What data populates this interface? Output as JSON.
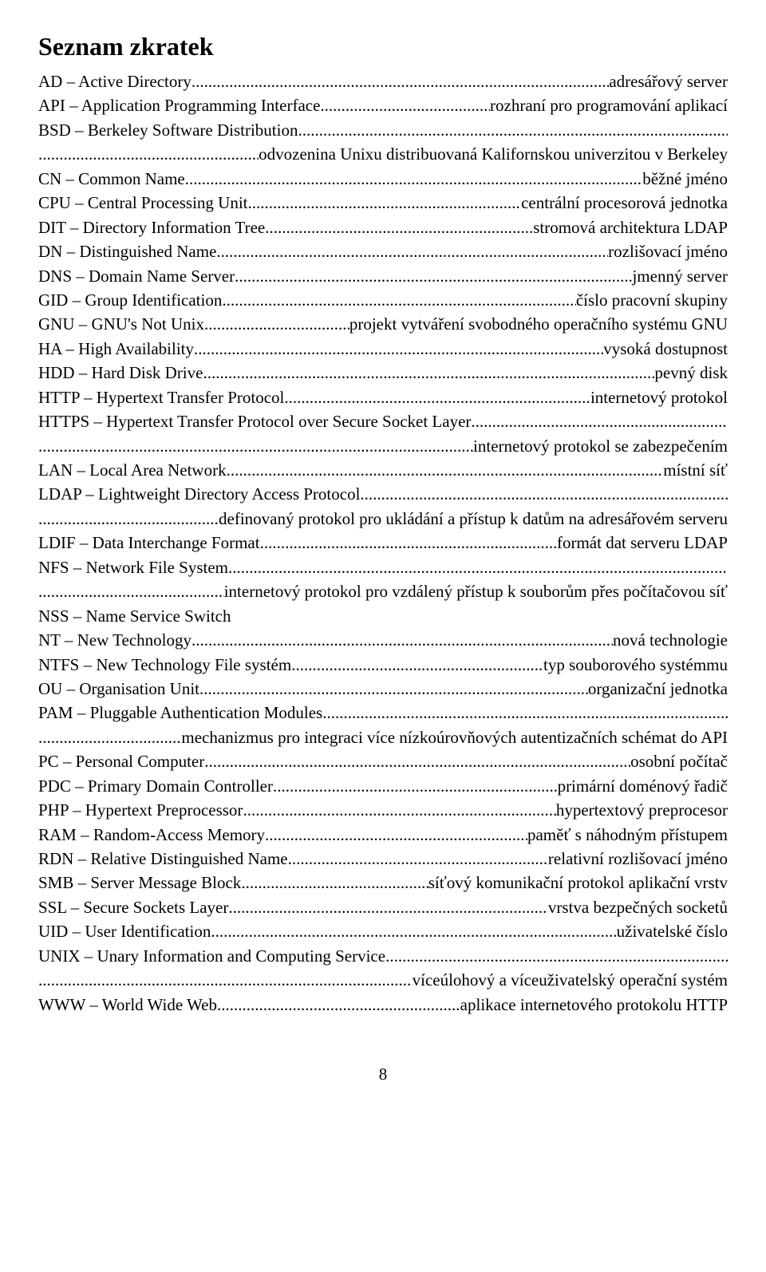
{
  "title": "Seznam zkratek",
  "pageNumber": "8",
  "entries": [
    {
      "term": "AD – Active Directory",
      "defn": "adresářový server"
    },
    {
      "term": "API – Application Programming Interface",
      "defn": "rozhraní pro programování aplikací"
    },
    {
      "term": "BSD – Berkeley Software Distribution",
      "defn": "",
      "contRight": "odvozenina Unixu distribuovaná Kalifornskou univerzitou v Berkeley"
    },
    {
      "term": "CN – Common Name",
      "defn": "běžné jméno"
    },
    {
      "term": "CPU – Central Processing Unit",
      "defn": "centrální procesorová jednotka"
    },
    {
      "term": "DIT – Directory Information Tree",
      "defn": "stromová architektura LDAP"
    },
    {
      "term": "DN – Distinguished Name",
      "defn": "rozlišovací jméno"
    },
    {
      "term": "DNS – Domain Name Server",
      "defn": "jmenný server"
    },
    {
      "term": "GID – Group Identification",
      "defn": "číslo pracovní skupiny"
    },
    {
      "term": "GNU – GNU's Not Unix",
      "defn": "projekt vytváření svobodného operačního systému GNU"
    },
    {
      "term": "HA – High Availability",
      "defn": "vysoká dostupnost"
    },
    {
      "term": "HDD – Hard Disk Drive",
      "defn": "pevný disk"
    },
    {
      "term": "HTTP – Hypertext Transfer Protocol",
      "defn": "internetový protokol"
    },
    {
      "term": "HTTPS – Hypertext Transfer Protocol over Secure Socket Layer",
      "defn": "",
      "contRight": "internetový protokol se zabezpečením"
    },
    {
      "term": "LAN – Local Area Network",
      "defn": "místní síť"
    },
    {
      "term": "LDAP – Lightweight Directory Access Protocol",
      "defn": "",
      "contRight": "definovaný protokol pro ukládání a přístup k datům na adresářovém serveru"
    },
    {
      "term": "LDIF – Data Interchange Format",
      "defn": "formát dat serveru LDAP"
    },
    {
      "term": "NFS – Network File System",
      "defn": "",
      "contRight": "internetový protokol pro vzdálený přístup k souborům přes počítačovou síť"
    },
    {
      "term": "NSS – Name Service Switch",
      "plain": true
    },
    {
      "term": "NT – New Technology",
      "defn": "nová technologie"
    },
    {
      "term": "NTFS – New Technology File systém",
      "defn": "typ souborového systémmu"
    },
    {
      "term": "OU – Organisation Unit",
      "defn": "organizační jednotka"
    },
    {
      "term": "PAM – Pluggable Authentication Modules",
      "defn": "",
      "contRight": "mechanizmus pro integraci více nízkoúrovňových autentizačních schémat do API",
      "contPrefix": "....."
    },
    {
      "term": "PC – Personal Computer",
      "defn": "osobní počítač"
    },
    {
      "term": "PDC – Primary Domain Controller",
      "defn": "primární doménový řadič"
    },
    {
      "term": "PHP – Hypertext Preprocessor",
      "defn": "hypertextový preprocesor"
    },
    {
      "term": "RAM – Random-Access Memory",
      "defn": "paměť s náhodným přístupem"
    },
    {
      "term": "RDN – Relative Distinguished Name",
      "defn": "relativní rozlišovací jméno"
    },
    {
      "term": "SMB – Server Message Block",
      "defn": "síťový komunikační protokol aplikační vrstv"
    },
    {
      "term": "SSL – Secure Sockets Layer",
      "defn": "vrstva bezpečných socketů"
    },
    {
      "term": "UID – User Identification",
      "defn": "uživatelské číslo"
    },
    {
      "term": "UNIX – Unary Information and Computing Service",
      "defn": "",
      "contRight": "víceúlohový a víceuživatelský operační systém"
    },
    {
      "term": "WWW – World Wide Web",
      "defn": "aplikace internetového protokolu HTTP"
    }
  ]
}
